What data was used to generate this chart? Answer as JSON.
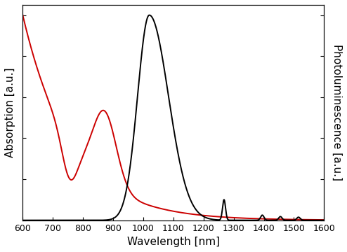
{
  "xlim": [
    600,
    1600
  ],
  "ylim": [
    0,
    1.05
  ],
  "xlabel": "Wavelength [nm]",
  "ylabel_left": "Absorption [a.u.]",
  "ylabel_right": "Photoluminescence [a.u.]",
  "absorption_color": "#cc0000",
  "pl_color": "#000000",
  "linewidth": 1.4,
  "xticks": [
    600,
    700,
    800,
    900,
    1000,
    1100,
    1200,
    1300,
    1400,
    1500,
    1600
  ],
  "background_color": "#ffffff",
  "xlabel_fontsize": 11,
  "ylabel_fontsize": 11
}
